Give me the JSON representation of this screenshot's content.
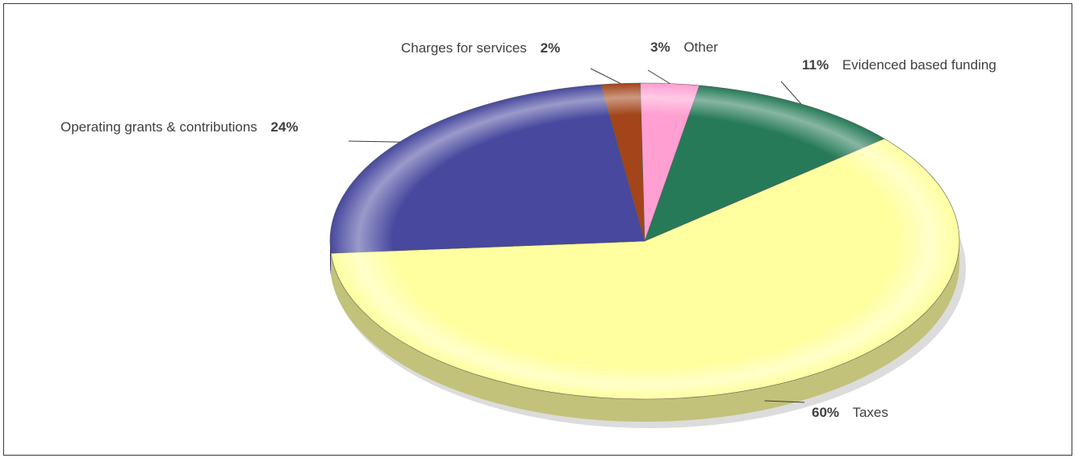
{
  "chart_data": {
    "type": "pie",
    "title": "",
    "legend": "none",
    "slices": [
      {
        "label": "Evidenced based funding",
        "value": 11,
        "percent_label": "11%",
        "color": "#267a58"
      },
      {
        "label": "Taxes",
        "value": 60,
        "percent_label": "60%",
        "color": "#ffffa0"
      },
      {
        "label": "Operating grants & contributions",
        "value": 24,
        "percent_label": "24%",
        "color": "#47489e"
      },
      {
        "label": "Charges for services",
        "value": 2,
        "percent_label": "2%",
        "color": "#a3441a"
      },
      {
        "label": "Other",
        "value": 3,
        "percent_label": "3%",
        "color": "#ff9fd2"
      }
    ]
  }
}
